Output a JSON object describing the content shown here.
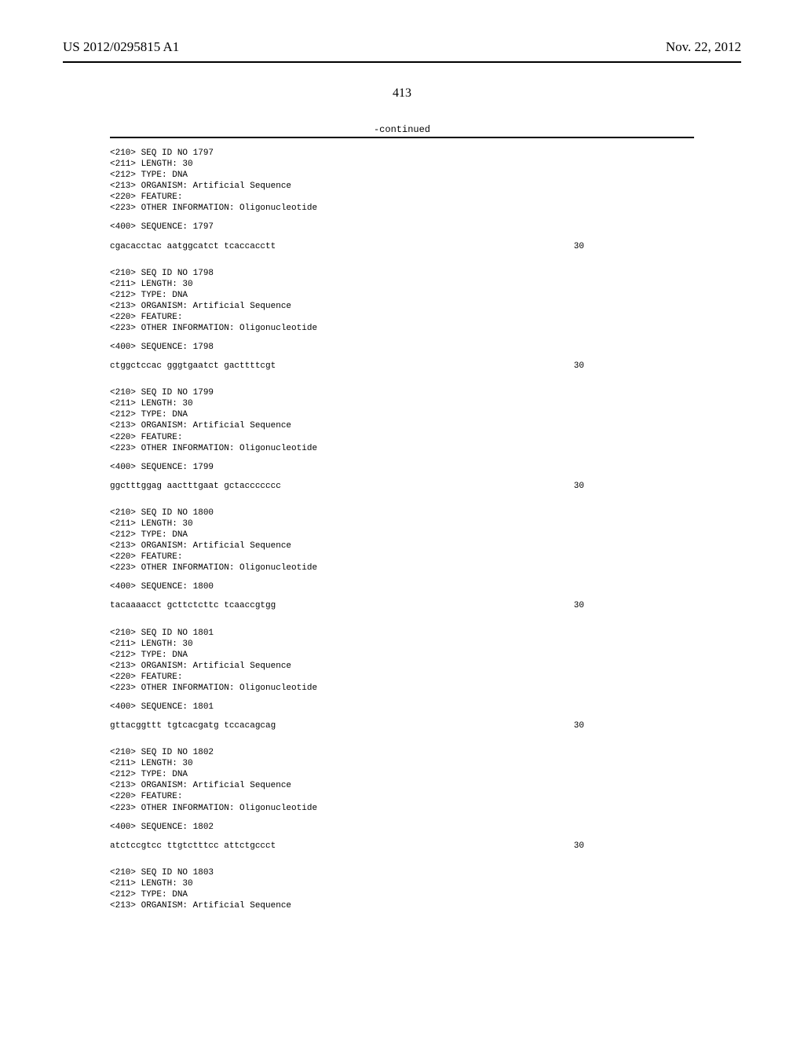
{
  "header": {
    "publication_number": "US 2012/0295815 A1",
    "publication_date": "Nov. 22, 2012"
  },
  "page_number": "413",
  "continued_label": "-continued",
  "sequences": [
    {
      "seq_id": "1797",
      "length": "30",
      "type": "DNA",
      "organism": "Artificial Sequence",
      "feature": "",
      "other_info": "Oligonucleotide",
      "sequence_num": "1797",
      "sequence": "cgacacctac aatggcatct tcaccacctt",
      "count": "30"
    },
    {
      "seq_id": "1798",
      "length": "30",
      "type": "DNA",
      "organism": "Artificial Sequence",
      "feature": "",
      "other_info": "Oligonucleotide",
      "sequence_num": "1798",
      "sequence": "ctggctccac gggtgaatct gacttttcgt",
      "count": "30"
    },
    {
      "seq_id": "1799",
      "length": "30",
      "type": "DNA",
      "organism": "Artificial Sequence",
      "feature": "",
      "other_info": "Oligonucleotide",
      "sequence_num": "1799",
      "sequence": "ggctttggag aactttgaat gctaccccccc",
      "count": "30"
    },
    {
      "seq_id": "1800",
      "length": "30",
      "type": "DNA",
      "organism": "Artificial Sequence",
      "feature": "",
      "other_info": "Oligonucleotide",
      "sequence_num": "1800",
      "sequence": "tacaaaacct gcttctcttc tcaaccgtgg",
      "count": "30"
    },
    {
      "seq_id": "1801",
      "length": "30",
      "type": "DNA",
      "organism": "Artificial Sequence",
      "feature": "",
      "other_info": "Oligonucleotide",
      "sequence_num": "1801",
      "sequence": "gttacggttt tgtcacgatg tccacagcag",
      "count": "30"
    },
    {
      "seq_id": "1802",
      "length": "30",
      "type": "DNA",
      "organism": "Artificial Sequence",
      "feature": "",
      "other_info": "Oligonucleotide",
      "sequence_num": "1802",
      "sequence": "atctccgtcc ttgtctttcc attctgccct",
      "count": "30"
    }
  ],
  "partial_sequence": {
    "seq_id": "1803",
    "length": "30",
    "type": "DNA",
    "organism": "Artificial Sequence"
  },
  "labels": {
    "seq_id_prefix": "<210> SEQ ID NO ",
    "length_prefix": "<211> LENGTH: ",
    "type_prefix": "<212> TYPE: ",
    "organism_prefix": "<213> ORGANISM: ",
    "feature_prefix": "<220> FEATURE:",
    "other_info_prefix": "<223> OTHER INFORMATION: ",
    "sequence_prefix": "<400> SEQUENCE: "
  }
}
